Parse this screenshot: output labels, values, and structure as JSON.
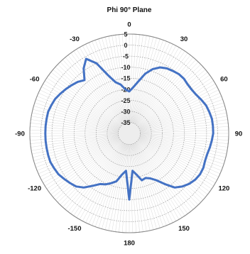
{
  "chart_data": {
    "type": "polar-line",
    "title": "Phi 90° Plane",
    "angle_tick_labels": [
      "0",
      "30",
      "60",
      "90",
      "120",
      "150",
      "180",
      "-150",
      "-120",
      "-90",
      "-60",
      "-30"
    ],
    "angle_tick_values": [
      0,
      30,
      60,
      90,
      120,
      150,
      180,
      -150,
      -120,
      -90,
      -60,
      -30
    ],
    "radial_tick_labels": [
      "5",
      "0",
      "-5",
      "-10",
      "-15",
      "-20",
      "-25",
      "-30",
      "-35"
    ],
    "radial_tick_values": [
      5,
      0,
      -5,
      -10,
      -15,
      -20,
      -25,
      -30,
      -35
    ],
    "rlim": [
      -40,
      5
    ],
    "grid": true,
    "series": [
      {
        "color": "#4472C4",
        "theta": [
          0,
          5,
          10,
          15,
          20,
          25,
          30,
          35,
          40,
          45,
          50,
          55,
          60,
          65,
          70,
          75,
          80,
          85,
          90,
          95,
          100,
          105,
          110,
          115,
          120,
          125,
          130,
          135,
          140,
          145,
          150,
          155,
          160,
          165,
          170,
          175,
          180,
          -175,
          -170,
          -165,
          -160,
          -155,
          -150,
          -145,
          -140,
          -135,
          -130,
          -125,
          -120,
          -115,
          -110,
          -105,
          -100,
          -95,
          -90,
          -85,
          -80,
          -75,
          -70,
          -65,
          -60,
          -55,
          -50,
          -45,
          -40,
          -35,
          -30,
          -25,
          -20,
          -15,
          -10,
          -5
        ],
        "r": [
          -21,
          -19,
          -16,
          -12,
          -9,
          -7,
          -6,
          -5.5,
          -5,
          -5,
          -5.5,
          -5.5,
          -5,
          -4,
          -3,
          -2.5,
          -2,
          -2,
          -2,
          -2.5,
          -3,
          -3.5,
          -3.5,
          -3,
          -3,
          -3.5,
          -4.5,
          -6,
          -8,
          -12,
          -15.5,
          -17.5,
          -18.5,
          -18,
          -21,
          -23,
          -10,
          -23,
          -21,
          -17.5,
          -16,
          -14.5,
          -13.5,
          -11,
          -8,
          -6,
          -5,
          -4,
          -3,
          -2.5,
          -2,
          -2,
          -2,
          -2,
          -2,
          -2,
          -2,
          -2,
          -2.5,
          -3,
          -4,
          -5,
          -6,
          -7,
          -8.5,
          -4,
          -1,
          -5,
          -12,
          -16,
          -17.5,
          -20
        ]
      }
    ]
  }
}
